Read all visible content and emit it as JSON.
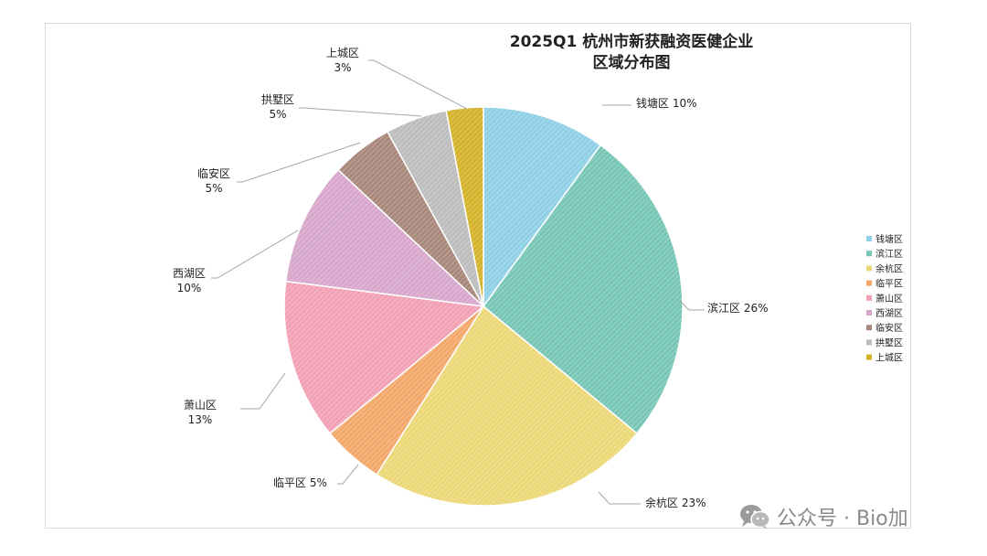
{
  "chart_data": {
    "type": "pie",
    "title": [
      "2025Q1  杭州市新获融资医健企业",
      "区域分布图"
    ],
    "start": "top",
    "direction": "clockwise",
    "legend_position": "right",
    "slices": [
      {
        "name": "钱塘区",
        "value": 10,
        "label": "钱塘区 10%",
        "color": "#8fd0e6"
      },
      {
        "name": "滨江区",
        "value": 26,
        "label": "滨江区 26%",
        "color": "#78c6b6"
      },
      {
        "name": "余杭区",
        "value": 23,
        "label": "余杭区 23%",
        "color": "#ecd877"
      },
      {
        "name": "临平区",
        "value": 5,
        "label": "临平区 5%",
        "color": "#f3a86a"
      },
      {
        "name": "萧山区",
        "value": 13,
        "label": "萧山区\n13%",
        "color": "#f2a0b4"
      },
      {
        "name": "西湖区",
        "value": 10,
        "label": "西湖区\n10%",
        "color": "#d8a7cc"
      },
      {
        "name": "临安区",
        "value": 5,
        "label": "临安区\n5%",
        "color": "#a8887a"
      },
      {
        "name": "拱墅区",
        "value": 5,
        "label": "拱墅区\n5%",
        "color": "#bdbdbd"
      },
      {
        "name": "上城区",
        "value": 3,
        "label": "上城区\n3%",
        "color": "#d4b32a"
      }
    ]
  },
  "watermark": {
    "text": "公众号 · Bio加",
    "icon": "wechat-icon"
  }
}
